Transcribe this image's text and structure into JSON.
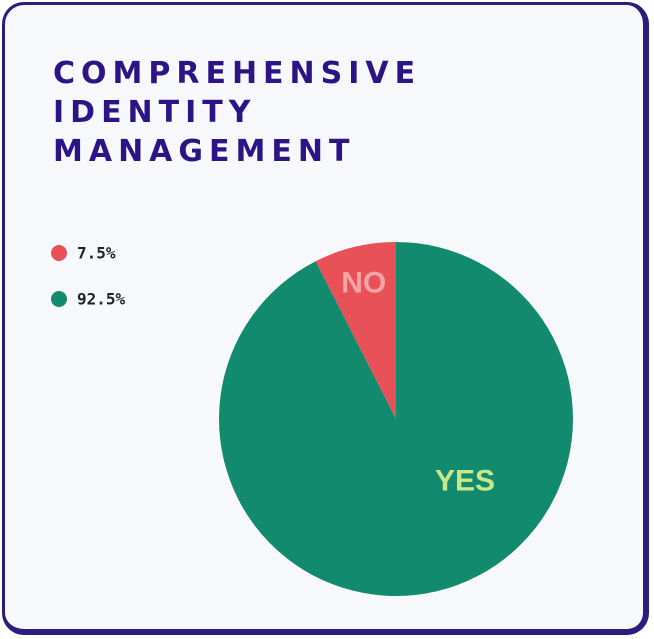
{
  "chart_data": {
    "type": "pie",
    "title": "COMPREHENSIVE IDENTITY MANAGEMENT",
    "categories": [
      "NO",
      "YES"
    ],
    "values": [
      7.5,
      92.5
    ],
    "value_labels": [
      "7.5%",
      "92.5%"
    ],
    "colors": [
      "#e85158",
      "#128a6e"
    ],
    "label_colors": [
      "#f5a3a6",
      "#c9e88a"
    ]
  }
}
